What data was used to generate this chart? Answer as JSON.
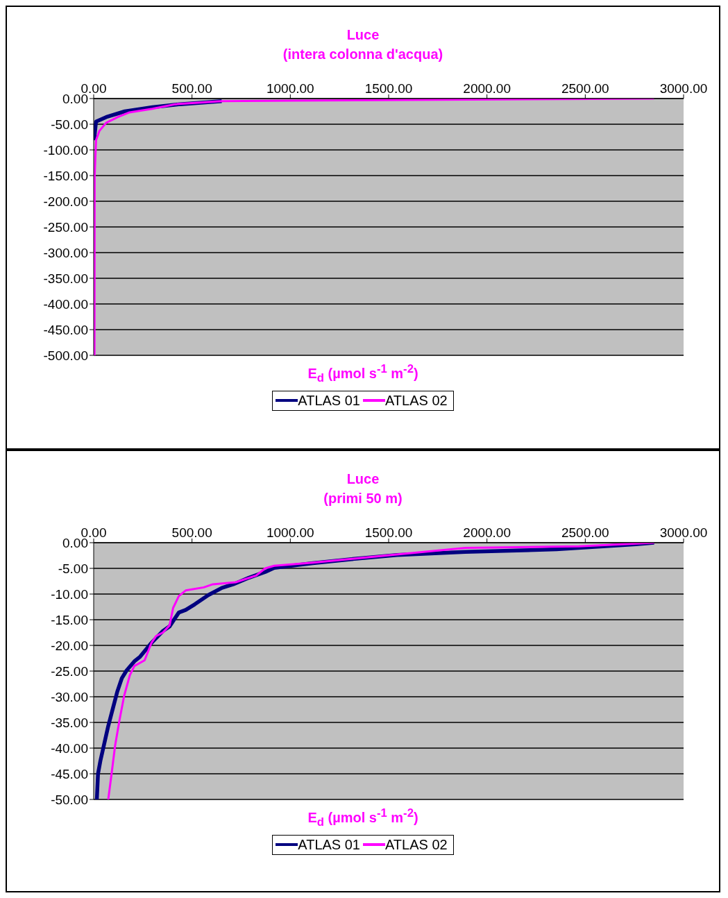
{
  "chart_data": [
    {
      "type": "line",
      "title": "Luce",
      "subtitle": "(intera colonna d'acqua)",
      "xlabel": "E$_{d}$ (µmol s$^{-1}$ m$^{-2}$)",
      "xlim": [
        0,
        3000
      ],
      "xticks": [
        {
          "value": 0,
          "label": "0.00"
        },
        {
          "value": 500,
          "label": "500.00"
        },
        {
          "value": 1000,
          "label": "1000.00"
        },
        {
          "value": 1500,
          "label": "1500.00"
        },
        {
          "value": 2000,
          "label": "2000.00"
        },
        {
          "value": 2500,
          "label": "2500.00"
        },
        {
          "value": 3000,
          "label": "3000.00"
        }
      ],
      "ylim": [
        -500,
        0
      ],
      "yticks": [
        {
          "value": 0,
          "label": "0.00"
        },
        {
          "value": -50,
          "label": "-50.00"
        },
        {
          "value": -100,
          "label": "-100.00"
        },
        {
          "value": -150,
          "label": "-150.00"
        },
        {
          "value": -200,
          "label": "-200.00"
        },
        {
          "value": -250,
          "label": "-250.00"
        },
        {
          "value": -300,
          "label": "-300.00"
        },
        {
          "value": -350,
          "label": "-350.00"
        },
        {
          "value": -400,
          "label": "-400.00"
        },
        {
          "value": -450,
          "label": "-450.00"
        },
        {
          "value": -500,
          "label": "-500.00"
        }
      ],
      "grid": "y",
      "legend": "bottom",
      "marker": "none",
      "line_style": "solid",
      "series": [
        {
          "name": "ATLAS 01",
          "color": "#000080",
          "x": [
            651,
            440,
            299,
            158,
            64,
            12,
            2
          ],
          "values": [
            -5,
            -11,
            -17,
            -25,
            -36,
            -45,
            -81
          ]
        },
        {
          "name": "ATLAS 02",
          "color": "#ff00ff",
          "x": [
            2850,
            1003,
            651,
            416,
            299,
            182,
            123,
            64,
            29,
            12,
            5,
            4
          ],
          "values": [
            0,
            -4,
            -5,
            -11,
            -20,
            -27,
            -36,
            -47,
            -63,
            -81,
            -150,
            -500
          ]
        }
      ]
    },
    {
      "type": "line",
      "title": "Luce",
      "subtitle": "(primi 50 m)",
      "xlabel": "E$_{d}$ (µmol s$^{-1}$ m$^{-2}$)",
      "xlim": [
        0,
        3000
      ],
      "xticks": [
        {
          "value": 0,
          "label": "0.00"
        },
        {
          "value": 500,
          "label": "500.00"
        },
        {
          "value": 1000,
          "label": "1000.00"
        },
        {
          "value": 1500,
          "label": "1500.00"
        },
        {
          "value": 2000,
          "label": "2000.00"
        },
        {
          "value": 2500,
          "label": "2500.00"
        },
        {
          "value": 3000,
          "label": "3000.00"
        }
      ],
      "ylim": [
        -50,
        0
      ],
      "yticks": [
        {
          "value": 0,
          "label": "0.00"
        },
        {
          "value": -5,
          "label": "-5.00"
        },
        {
          "value": -10,
          "label": "-10.00"
        },
        {
          "value": -15,
          "label": "-15.00"
        },
        {
          "value": -20,
          "label": "-20.00"
        },
        {
          "value": -25,
          "label": "-25.00"
        },
        {
          "value": -30,
          "label": "-30.00"
        },
        {
          "value": -35,
          "label": "-35.00"
        },
        {
          "value": -40,
          "label": "-40.00"
        },
        {
          "value": -45,
          "label": "-45.00"
        },
        {
          "value": -50,
          "label": "-50.00"
        }
      ],
      "grid": "y",
      "legend": "bottom",
      "marker": "none",
      "line_style": "solid",
      "series": [
        {
          "name": "ATLAS 01",
          "color": "#000080",
          "x": [
            2850,
            2758,
            2353,
            1890,
            1543,
            1312,
            1115,
            918,
            872,
            791,
            710,
            652,
            583,
            514,
            468,
            433,
            386,
            352,
            294,
            236,
            207,
            167,
            143,
            120,
            74,
            34,
            22,
            16
          ],
          "values": [
            0,
            -0.3,
            -1.3,
            -1.8,
            -2.4,
            -3.2,
            -4.0,
            -4.9,
            -5.7,
            -6.8,
            -8.1,
            -8.8,
            -10.2,
            -12,
            -13.1,
            -13.6,
            -16.3,
            -17.2,
            -19.5,
            -22.2,
            -23.1,
            -24.9,
            -26.4,
            -29,
            -35.7,
            -42.5,
            -45,
            -50
          ]
        },
        {
          "name": "ATLAS 02",
          "color": "#ff00ff",
          "x": [
            2850,
            2468,
            1890,
            1485,
            1115,
            918,
            872,
            826,
            722,
            606,
            560,
            468,
            433,
            404,
            386,
            352,
            317,
            294,
            259,
            207,
            184,
            155,
            132,
            109,
            91,
            74
          ],
          "values": [
            0,
            -0.7,
            -1.0,
            -2.5,
            -3.9,
            -4.5,
            -5.0,
            -6.4,
            -7.7,
            -8.1,
            -8.7,
            -9.3,
            -10.4,
            -12.7,
            -16.1,
            -17.5,
            -18.2,
            -19.5,
            -22.9,
            -24,
            -25.8,
            -29.8,
            -34.4,
            -39.5,
            -45,
            -50
          ]
        }
      ]
    }
  ]
}
